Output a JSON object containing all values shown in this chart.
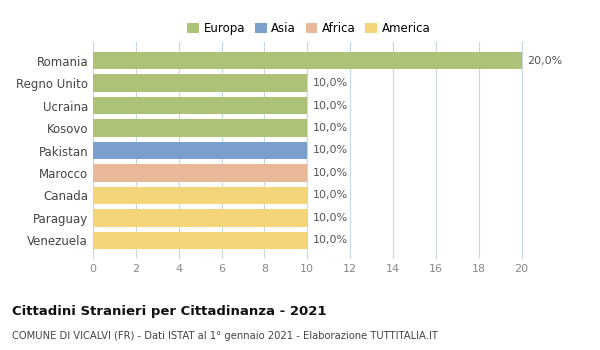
{
  "countries": [
    "Romania",
    "Regno Unito",
    "Ucraina",
    "Kosovo",
    "Pakistan",
    "Marocco",
    "Canada",
    "Paraguay",
    "Venezuela"
  ],
  "values": [
    20.0,
    10.0,
    10.0,
    10.0,
    10.0,
    10.0,
    10.0,
    10.0,
    10.0
  ],
  "bar_colors": [
    "#adc178",
    "#adc178",
    "#adc178",
    "#adc178",
    "#7b9fcc",
    "#e8b898",
    "#f5d57a",
    "#f5d57a",
    "#f5d57a"
  ],
  "legend_labels": [
    "Europa",
    "Asia",
    "Africa",
    "America"
  ],
  "legend_colors": [
    "#adc178",
    "#7b9fcc",
    "#e8b898",
    "#f5d57a"
  ],
  "xlim": [
    0,
    21
  ],
  "xticks": [
    0,
    2,
    4,
    6,
    8,
    10,
    12,
    14,
    16,
    18,
    20
  ],
  "title": "Cittadini Stranieri per Cittadinanza - 2021",
  "subtitle": "COMUNE DI VICALVI (FR) - Dati ISTAT al 1° gennaio 2021 - Elaborazione TUTTITALIA.IT",
  "background_color": "#ffffff",
  "grid_color": "#c8d8e0"
}
